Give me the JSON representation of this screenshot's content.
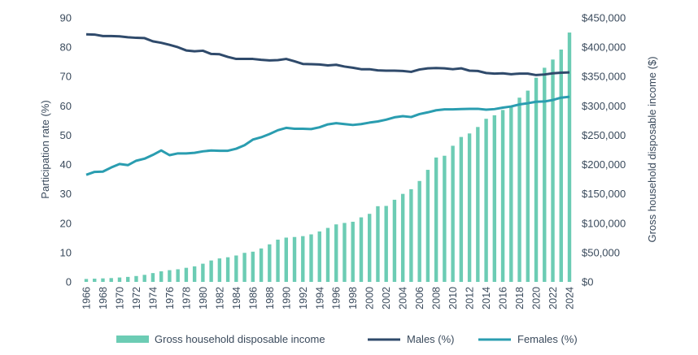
{
  "chart_data": {
    "type": "bar+line",
    "colors": {
      "income": "#6cccb4",
      "males": "#2f4a6b",
      "females": "#2a9db0",
      "axis_text": "#3a4a5c"
    },
    "y_left": {
      "label": "Participation rate (%)",
      "min": 0,
      "max": 90,
      "ticks": [
        0,
        10,
        20,
        30,
        40,
        50,
        60,
        70,
        80,
        90
      ],
      "tick_labels": [
        "0",
        "10",
        "20",
        "30",
        "40",
        "50",
        "60",
        "70",
        "80",
        "90"
      ]
    },
    "y_right": {
      "label": "Gross household disposable income ($)",
      "min": 0,
      "max": 450000,
      "ticks": [
        0,
        50000,
        100000,
        150000,
        200000,
        250000,
        300000,
        350000,
        400000,
        450000
      ],
      "tick_labels": [
        "$0",
        "$50,000",
        "$100,000",
        "$150,000",
        "$200,000",
        "$250,000",
        "$300,000",
        "$350,000",
        "$400,000",
        "$450,000"
      ]
    },
    "x": {
      "start_year": 1966,
      "end_year": 2024,
      "tick_labels": [
        "1966",
        "1968",
        "1970",
        "1972",
        "1974",
        "1976",
        "1978",
        "1980",
        "1982",
        "1984",
        "1986",
        "1988",
        "1990",
        "1992",
        "1994",
        "1996",
        "1998",
        "2000",
        "2002",
        "2004",
        "2006",
        "2008",
        "2010",
        "2012",
        "2014",
        "2016",
        "2018",
        "2020",
        "2022",
        "2024"
      ]
    },
    "legend": {
      "placement": "bottom",
      "items": [
        "Gross household disposable income",
        "Males (%)",
        "Females (%)"
      ]
    },
    "series": [
      {
        "name": "Gross household disposable income",
        "kind": "bar",
        "axis": "right",
        "values": [
          5000,
          5500,
          6000,
          6500,
          7500,
          8500,
          10000,
          12000,
          15000,
          18000,
          20000,
          21500,
          24000,
          26500,
          31000,
          36500,
          40000,
          42000,
          45000,
          49500,
          51500,
          57000,
          64000,
          72000,
          75500,
          76500,
          78000,
          81000,
          86000,
          92000,
          98000,
          100500,
          102500,
          110000,
          116000,
          129000,
          129500,
          140000,
          150000,
          158000,
          172000,
          191000,
          212000,
          215000,
          232000,
          247000,
          253000,
          264000,
          278000,
          284000,
          293000,
          300000,
          314000,
          326000,
          348000,
          365000,
          379000,
          396000,
          425000
        ]
      },
      {
        "name": "Males (%)",
        "kind": "line",
        "axis": "left",
        "values": [
          84.4,
          84.3,
          83.8,
          83.8,
          83.7,
          83.4,
          83.2,
          83.1,
          82.0,
          81.5,
          80.8,
          80.0,
          78.9,
          78.6,
          78.8,
          77.7,
          77.6,
          76.7,
          76.0,
          76.0,
          76.0,
          75.7,
          75.5,
          75.6,
          76.0,
          75.2,
          74.3,
          74.2,
          74.1,
          73.8,
          74.0,
          73.4,
          73.0,
          72.5,
          72.5,
          72.1,
          72.0,
          72.0,
          71.9,
          71.6,
          72.4,
          72.8,
          72.9,
          72.8,
          72.5,
          72.8,
          72.0,
          71.9,
          71.2,
          71.0,
          71.1,
          70.8,
          71.0,
          71.0,
          70.5,
          70.7,
          71.1,
          71.3,
          71.4
        ]
      },
      {
        "name": "Females (%)",
        "kind": "line",
        "axis": "left",
        "values": [
          36.5,
          37.5,
          37.6,
          39.0,
          40.2,
          39.8,
          41.3,
          42.0,
          43.3,
          44.8,
          43.2,
          43.8,
          43.8,
          44.0,
          44.5,
          44.8,
          44.7,
          44.7,
          45.4,
          46.6,
          48.5,
          49.3,
          50.4,
          51.7,
          52.5,
          52.2,
          52.2,
          52.1,
          52.7,
          53.7,
          54.1,
          53.8,
          53.5,
          53.8,
          54.3,
          54.7,
          55.3,
          56.1,
          56.5,
          56.2,
          57.2,
          57.8,
          58.5,
          58.8,
          58.8,
          58.9,
          59.0,
          59.0,
          58.7,
          58.9,
          59.4,
          59.8,
          60.5,
          60.9,
          61.4,
          61.5,
          62.0,
          62.8,
          63.1
        ]
      }
    ]
  }
}
